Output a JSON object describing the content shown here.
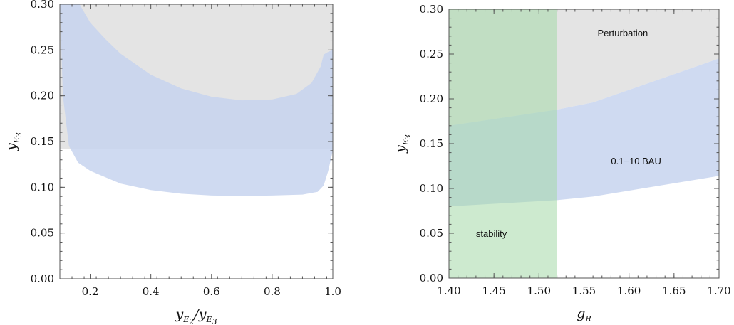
{
  "chart_data": [
    {
      "type": "area",
      "xlim": [
        0.1,
        1.0
      ],
      "ylim": [
        0.0,
        0.3
      ],
      "xticks": [
        "0.2",
        "0.4",
        "0.6",
        "0.8",
        "1.0"
      ],
      "yticks": [
        "0.00",
        "0.05",
        "0.10",
        "0.15",
        "0.20",
        "0.25",
        "0.30"
      ],
      "xlabel": {
        "main": "y",
        "sub1": "E",
        "sub2": "2",
        "sep": "/y",
        "sub3": "E",
        "sub4": "3"
      },
      "ylabel": {
        "main": "y",
        "sub1": "E",
        "sub2": "3"
      },
      "grid": false,
      "regions": [
        {
          "name": "",
          "color": "#e4e4e4",
          "lower": [
            [
              0.1,
              0.142
            ],
            [
              1.0,
              0.142
            ]
          ],
          "upper": [
            [
              0.1,
              0.3
            ],
            [
              1.0,
              0.3
            ]
          ]
        },
        {
          "name": "",
          "color": "#c7d3ef",
          "opacity": 0.85,
          "lower": [
            [
              0.1,
              0.3
            ],
            [
              0.11,
              0.2
            ],
            [
              0.13,
              0.145
            ],
            [
              0.16,
              0.127
            ],
            [
              0.2,
              0.118
            ],
            [
              0.3,
              0.104
            ],
            [
              0.4,
              0.097
            ],
            [
              0.5,
              0.093
            ],
            [
              0.6,
              0.091
            ],
            [
              0.7,
              0.0905
            ],
            [
              0.8,
              0.091
            ],
            [
              0.9,
              0.092
            ],
            [
              0.95,
              0.095
            ],
            [
              0.97,
              0.102
            ],
            [
              0.985,
              0.118
            ],
            [
              1.0,
              0.14
            ]
          ],
          "upper": [
            [
              0.1,
              0.3
            ],
            [
              0.165,
              0.3
            ],
            [
              0.2,
              0.28
            ],
            [
              0.25,
              0.262
            ],
            [
              0.3,
              0.246
            ],
            [
              0.4,
              0.223
            ],
            [
              0.5,
              0.208
            ],
            [
              0.6,
              0.199
            ],
            [
              0.7,
              0.195
            ],
            [
              0.8,
              0.196
            ],
            [
              0.88,
              0.202
            ],
            [
              0.93,
              0.214
            ],
            [
              0.96,
              0.232
            ],
            [
              0.97,
              0.245
            ],
            [
              0.985,
              0.248
            ],
            [
              1.0,
              0.25
            ]
          ]
        }
      ]
    },
    {
      "type": "area",
      "xlim": [
        1.4,
        1.7
      ],
      "ylim": [
        0.0,
        0.3
      ],
      "xticks": [
        "1.40",
        "1.45",
        "1.50",
        "1.55",
        "1.60",
        "1.65",
        "1.70"
      ],
      "yticks": [
        "0.00",
        "0.05",
        "0.10",
        "0.15",
        "0.20",
        "0.25",
        "0.30"
      ],
      "xlabel": {
        "main": "g",
        "sub1": "R"
      },
      "ylabel": {
        "main": "y",
        "sub1": "E",
        "sub2": "3"
      },
      "grid": false,
      "regions": [
        {
          "name": "Perturbation",
          "color": "#e4e4e4",
          "lower": [
            [
              1.4,
              0.17
            ],
            [
              1.52,
              0.188
            ],
            [
              1.56,
              0.196
            ],
            [
              1.7,
              0.245
            ]
          ],
          "upper": [
            [
              1.4,
              0.3
            ],
            [
              1.7,
              0.3
            ]
          ]
        },
        {
          "name": "0.1−10 BAU",
          "color": "#c7d3ef",
          "opacity": 0.85,
          "lower": [
            [
              1.4,
              0.08
            ],
            [
              1.52,
              0.087
            ],
            [
              1.56,
              0.091
            ],
            [
              1.7,
              0.114
            ]
          ],
          "upper": [
            [
              1.4,
              0.17
            ],
            [
              1.52,
              0.188
            ],
            [
              1.56,
              0.196
            ],
            [
              1.7,
              0.245
            ]
          ]
        },
        {
          "name": "stability",
          "color": "#a4d8a7",
          "opacity": 0.55,
          "lower": [
            [
              1.4,
              0.0
            ],
            [
              1.52,
              0.0
            ]
          ],
          "upper": [
            [
              1.4,
              0.3
            ],
            [
              1.52,
              0.3
            ]
          ]
        }
      ],
      "annotations": [
        {
          "text": "Perturbation",
          "x": 1.565,
          "y": 0.27
        },
        {
          "text": "0.1−10 BAU",
          "x": 1.58,
          "y": 0.127
        },
        {
          "text": "stability",
          "x": 1.43,
          "y": 0.046
        }
      ]
    }
  ]
}
